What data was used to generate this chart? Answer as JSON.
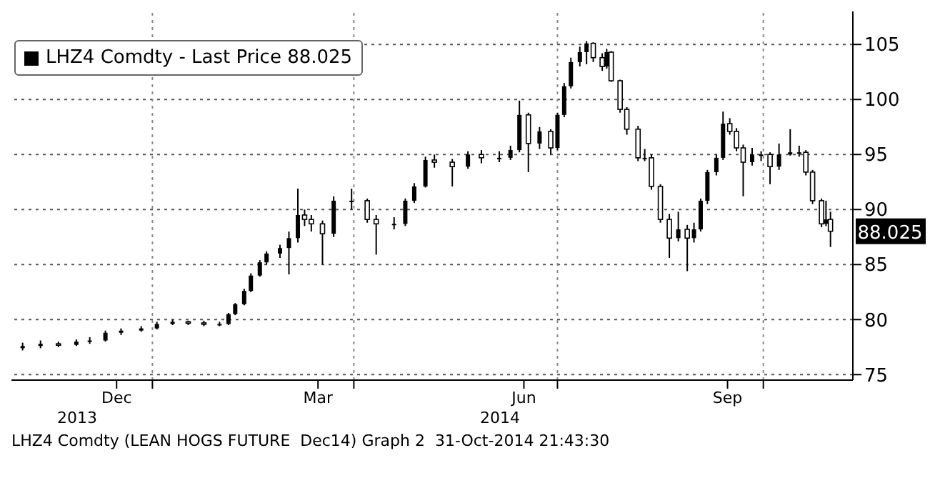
{
  "chart_data": {
    "type": "candlestick",
    "legend": "top left",
    "grid": true,
    "series": [
      {
        "name": "LHZ4 Comdty - Last Price 88.025",
        "color": "#000000",
        "x": [
          "2013-11-04",
          "2013-11-12",
          "2013-11-20",
          "2013-11-28",
          "2013-12-04",
          "2013-12-11",
          "2013-12-18",
          "2013-12-27",
          "2014-01-03",
          "2014-01-10",
          "2014-01-17",
          "2014-01-24",
          "2014-01-31",
          "2014-02-04",
          "2014-02-07",
          "2014-02-11",
          "2014-02-14",
          "2014-02-18",
          "2014-02-21",
          "2014-02-27",
          "2014-03-03",
          "2014-03-07",
          "2014-03-10",
          "2014-03-13",
          "2014-03-18",
          "2014-03-23",
          "2014-03-31",
          "2014-04-07",
          "2014-04-11",
          "2014-04-19",
          "2014-04-24",
          "2014-04-28",
          "2014-05-03",
          "2014-05-07",
          "2014-05-15",
          "2014-05-22",
          "2014-05-28",
          "2014-06-05",
          "2014-06-10",
          "2014-06-14",
          "2014-06-18",
          "2014-06-23",
          "2014-06-28",
          "2014-07-01",
          "2014-07-04",
          "2014-07-07",
          "2014-07-11",
          "2014-07-14",
          "2014-07-17",
          "2014-07-21",
          "2014-07-23",
          "2014-07-25",
          "2014-07-29",
          "2014-08-01",
          "2014-08-06",
          "2014-08-09",
          "2014-08-12",
          "2014-08-16",
          "2014-08-20",
          "2014-08-24",
          "2014-08-28",
          "2014-08-31",
          "2014-09-03",
          "2014-09-06",
          "2014-09-10",
          "2014-09-13",
          "2014-09-16",
          "2014-09-19",
          "2014-09-22",
          "2014-09-26",
          "2014-09-30",
          "2014-10-04",
          "2014-10-08",
          "2014-10-13",
          "2014-10-17",
          "2014-10-20",
          "2014-10-23",
          "2014-10-27",
          "2014-10-29",
          "2014-10-31"
        ],
        "ohlc": [
          [
            77.4,
            77.9,
            77.2,
            77.6
          ],
          [
            77.6,
            78.1,
            77.4,
            77.8
          ],
          [
            77.8,
            78.0,
            77.5,
            77.7
          ],
          [
            77.7,
            78.2,
            77.6,
            78.0
          ],
          [
            78.0,
            78.4,
            77.8,
            78.1
          ],
          [
            78.1,
            79.0,
            78.0,
            78.8
          ],
          [
            78.8,
            79.2,
            78.6,
            79.0
          ],
          [
            79.0,
            79.4,
            78.9,
            79.2
          ],
          [
            79.2,
            79.8,
            79.1,
            79.6
          ],
          [
            79.6,
            80.0,
            79.5,
            79.8
          ],
          [
            79.8,
            79.9,
            79.5,
            79.7
          ],
          [
            79.7,
            79.9,
            79.4,
            79.6
          ],
          [
            79.6,
            79.8,
            79.4,
            79.6
          ],
          [
            79.6,
            80.6,
            79.5,
            80.5
          ],
          [
            80.5,
            81.5,
            80.4,
            81.4
          ],
          [
            81.4,
            82.8,
            81.3,
            82.6
          ],
          [
            82.6,
            84.2,
            82.5,
            84.0
          ],
          [
            84.0,
            85.4,
            83.9,
            85.2
          ],
          [
            85.2,
            86.2,
            85.0,
            86.0
          ],
          [
            86.0,
            86.8,
            85.6,
            86.5
          ],
          [
            86.5,
            88.0,
            84.1,
            87.4
          ],
          [
            87.4,
            91.9,
            87.0,
            89.5
          ],
          [
            89.5,
            90.0,
            88.5,
            89.1
          ],
          [
            89.1,
            89.5,
            88.0,
            88.7
          ],
          [
            88.7,
            89.0,
            85.0,
            87.8
          ],
          [
            87.8,
            91.2,
            87.5,
            90.8
          ],
          [
            90.8,
            91.9,
            90.0,
            90.8
          ],
          [
            90.8,
            91.0,
            88.8,
            89.1
          ],
          [
            89.1,
            89.5,
            85.9,
            88.7
          ],
          [
            88.7,
            89.3,
            88.2,
            88.7
          ],
          [
            88.7,
            91.0,
            88.5,
            90.8
          ],
          [
            90.8,
            92.4,
            90.6,
            92.1
          ],
          [
            92.1,
            94.8,
            92.0,
            94.5
          ],
          [
            94.5,
            95.0,
            93.8,
            94.3
          ],
          [
            94.3,
            94.6,
            92.1,
            93.9
          ],
          [
            93.9,
            95.3,
            93.7,
            95.0
          ],
          [
            95.0,
            95.4,
            94.2,
            94.7
          ],
          [
            94.7,
            95.3,
            94.3,
            94.7
          ],
          [
            94.7,
            95.8,
            94.5,
            95.4
          ],
          [
            95.4,
            99.9,
            95.2,
            98.6
          ],
          [
            98.6,
            98.8,
            93.4,
            96.0
          ],
          [
            96.0,
            97.5,
            95.5,
            97.1
          ],
          [
            97.1,
            97.3,
            95.0,
            95.6
          ],
          [
            95.6,
            98.8,
            95.4,
            98.6
          ],
          [
            98.6,
            101.5,
            98.4,
            101.2
          ],
          [
            101.2,
            103.8,
            101.0,
            103.4
          ],
          [
            103.4,
            104.8,
            103.0,
            104.3
          ],
          [
            104.3,
            105.3,
            103.2,
            105.1
          ],
          [
            105.1,
            105.2,
            103.4,
            103.8
          ],
          [
            103.8,
            104.2,
            102.6,
            103.0
          ],
          [
            103.0,
            104.6,
            102.8,
            104.3
          ],
          [
            104.3,
            104.4,
            101.6,
            101.7
          ],
          [
            101.7,
            101.8,
            98.8,
            99.1
          ],
          [
            99.1,
            99.3,
            96.8,
            97.3
          ],
          [
            97.3,
            97.6,
            94.4,
            94.7
          ],
          [
            94.7,
            95.5,
            94.4,
            94.7
          ],
          [
            94.7,
            95.0,
            91.8,
            92.1
          ],
          [
            92.1,
            92.3,
            88.8,
            89.1
          ],
          [
            89.1,
            89.6,
            85.6,
            87.4
          ],
          [
            87.4,
            89.8,
            87.1,
            88.2
          ],
          [
            88.2,
            88.6,
            84.4,
            87.4
          ],
          [
            87.4,
            88.8,
            87.0,
            88.2
          ],
          [
            88.2,
            91.0,
            88.0,
            90.8
          ],
          [
            90.8,
            93.6,
            90.5,
            93.4
          ],
          [
            93.4,
            95.0,
            93.1,
            94.7
          ],
          [
            94.7,
            98.9,
            94.5,
            97.8
          ],
          [
            97.8,
            98.3,
            96.8,
            97.1
          ],
          [
            97.1,
            97.4,
            95.3,
            95.6
          ],
          [
            95.6,
            95.9,
            91.2,
            94.3
          ],
          [
            94.3,
            95.6,
            94.0,
            95.0
          ],
          [
            95.0,
            95.3,
            94.4,
            95.0
          ],
          [
            95.0,
            95.2,
            92.3,
            93.9
          ],
          [
            93.9,
            96.0,
            93.6,
            95.0
          ],
          [
            95.0,
            97.3,
            94.9,
            95.2
          ],
          [
            95.2,
            95.8,
            94.8,
            95.2
          ],
          [
            95.2,
            95.4,
            93.1,
            93.4
          ],
          [
            93.4,
            93.6,
            90.5,
            90.8
          ],
          [
            90.8,
            91.0,
            88.4,
            88.7
          ],
          [
            88.7,
            90.8,
            88.5,
            89.1
          ],
          [
            89.1,
            89.8,
            86.6,
            88.025
          ]
        ]
      }
    ],
    "xlim": [
      "2013-10-30",
      "2014-11-10"
    ],
    "xticks": [
      {
        "value": "2013-12-16",
        "label": "Dec"
      },
      {
        "value": "2014-01-01",
        "label": null
      },
      {
        "value": "2014-03-16",
        "label": "Mar"
      },
      {
        "value": "2014-04-01",
        "label": null
      },
      {
        "value": "2014-06-16",
        "label": "Jun"
      },
      {
        "value": "2014-07-01",
        "label": null
      },
      {
        "value": "2014-09-15",
        "label": "Sep"
      },
      {
        "value": "2014-10-01",
        "label": null
      }
    ],
    "ylim": [
      74.5,
      108
    ],
    "yticks": [
      75,
      80,
      85,
      90,
      95,
      100,
      105
    ],
    "annotations": [
      "2013",
      "2014",
      "88.025",
      "LHZ4 Comdty (LEAN HOGS FUTURE  Dec14) Graph 2  31-Oct-2014 21:43:30"
    ]
  }
}
